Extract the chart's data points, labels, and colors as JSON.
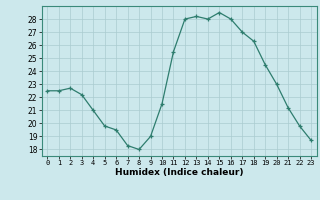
{
  "x": [
    0,
    1,
    2,
    3,
    4,
    5,
    6,
    7,
    8,
    9,
    10,
    11,
    12,
    13,
    14,
    15,
    16,
    17,
    18,
    19,
    20,
    21,
    22,
    23
  ],
  "y": [
    22.5,
    22.5,
    22.7,
    22.2,
    21.0,
    19.8,
    19.5,
    18.3,
    18.0,
    19.0,
    21.5,
    25.5,
    28.0,
    28.2,
    28.0,
    28.5,
    28.0,
    27.0,
    26.3,
    24.5,
    23.0,
    21.2,
    19.8,
    18.7
  ],
  "xlabel": "Humidex (Indice chaleur)",
  "ylim": [
    17.5,
    29.0
  ],
  "xlim": [
    -0.5,
    23.5
  ],
  "yticks": [
    18,
    19,
    20,
    21,
    22,
    23,
    24,
    25,
    26,
    27,
    28
  ],
  "xticks": [
    0,
    1,
    2,
    3,
    4,
    5,
    6,
    7,
    8,
    9,
    10,
    11,
    12,
    13,
    14,
    15,
    16,
    17,
    18,
    19,
    20,
    21,
    22,
    23
  ],
  "line_color": "#2e7d6e",
  "marker_color": "#2e7d6e",
  "bg_color": "#cce8ec",
  "grid_color": "#aaccd0"
}
